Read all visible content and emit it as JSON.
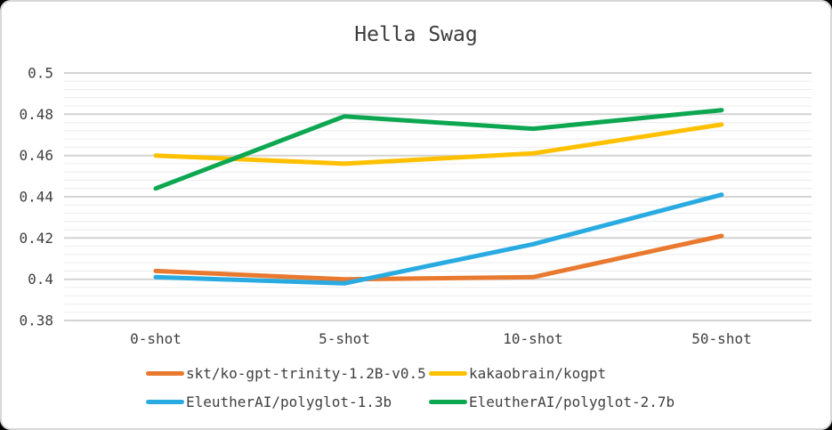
{
  "chart_data": {
    "type": "line",
    "title": "Hella Swag",
    "categories": [
      "0-shot",
      "5-shot",
      "10-shot",
      "50-shot"
    ],
    "series": [
      {
        "name": "skt/ko-gpt-trinity-1.2B-v0.5",
        "color": "#e8792f",
        "values": [
          0.404,
          0.4,
          0.401,
          0.421
        ]
      },
      {
        "name": "kakaobrain/kogpt",
        "color": "#ffc000",
        "values": [
          0.46,
          0.456,
          0.461,
          0.475
        ]
      },
      {
        "name": "EleutherAI/polyglot-1.3b",
        "color": "#29abe2",
        "values": [
          0.401,
          0.398,
          0.417,
          0.441
        ]
      },
      {
        "name": "EleutherAI/polyglot-2.7b",
        "color": "#0ca750",
        "values": [
          0.444,
          0.479,
          0.473,
          0.482
        ]
      }
    ],
    "xlabel": "",
    "ylabel": "",
    "ylim": [
      0.38,
      0.5
    ],
    "yticks": [
      {
        "value": 0.5,
        "label": "0.5"
      },
      {
        "value": 0.48,
        "label": "0.48"
      },
      {
        "value": 0.46,
        "label": "0.46"
      },
      {
        "value": 0.44,
        "label": "0.44"
      },
      {
        "value": 0.42,
        "label": "0.42"
      },
      {
        "value": 0.4,
        "label": "0.4"
      },
      {
        "value": 0.38,
        "label": "0.38"
      }
    ],
    "y_minor_step": 0.004,
    "grid": "horizontal major+minor",
    "legend_position": "bottom"
  },
  "style": {
    "grid_major": "#d4d4d4",
    "grid_minor": "#ececec",
    "text_color": "#3f3f3f",
    "card_border": "#d7d7d7",
    "card_background": "#ffffff",
    "outer_background": "#000000"
  }
}
